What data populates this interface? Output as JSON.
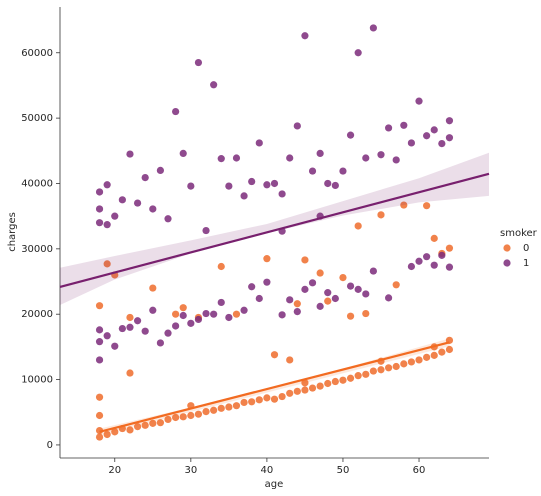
{
  "chart_data": {
    "type": "scatter",
    "x_label": "age",
    "y_label": "charges",
    "legend_title": "smoker",
    "xlim": [
      12.8,
      69.2
    ],
    "ylim": [
      -2000,
      67000
    ],
    "xticks": [
      20,
      30,
      40,
      50,
      60
    ],
    "yticks": [
      0,
      10000,
      20000,
      30000,
      40000,
      50000,
      60000
    ],
    "series": [
      {
        "name": "0",
        "color": "#ef6c2c",
        "line_color": "#f26b21",
        "x": [
          18,
          18,
          19,
          20,
          21,
          22,
          23,
          24,
          25,
          26,
          27,
          28,
          29,
          30,
          31,
          32,
          33,
          34,
          35,
          36,
          37,
          38,
          39,
          40,
          41,
          42,
          43,
          44,
          45,
          46,
          47,
          48,
          49,
          50,
          51,
          52,
          53,
          54,
          55,
          56,
          57,
          58,
          59,
          60,
          61,
          62,
          63,
          64,
          64,
          18,
          30,
          45,
          55,
          62,
          18,
          18,
          19,
          20,
          22,
          22,
          25,
          28,
          29,
          31,
          34,
          36,
          40,
          41,
          43,
          44,
          45,
          47,
          48,
          50,
          51,
          52,
          53,
          55,
          57,
          58,
          61,
          62,
          63,
          64
        ],
        "y": [
          1200,
          2200,
          1600,
          2000,
          2500,
          2300,
          2800,
          3000,
          3300,
          3400,
          3900,
          4200,
          4300,
          4500,
          4700,
          5100,
          5300,
          5600,
          5800,
          6000,
          6500,
          6600,
          6900,
          7200,
          7000,
          7400,
          7900,
          8200,
          8400,
          8700,
          9000,
          9400,
          9700,
          9900,
          10200,
          10600,
          10800,
          11300,
          11500,
          11800,
          12000,
          12400,
          12700,
          13000,
          13400,
          13700,
          14200,
          14600,
          16000,
          4500,
          6000,
          9500,
          12800,
          15000,
          7300,
          21300,
          27700,
          26000,
          11000,
          19500,
          24000,
          20000,
          21000,
          19500,
          27300,
          20000,
          28500,
          13800,
          13000,
          21600,
          28300,
          26300,
          22000,
          25600,
          19700,
          33500,
          20100,
          35200,
          24500,
          36700,
          36600,
          31600,
          29300,
          30100
        ],
        "regression": {
          "x": [
            18,
            64
          ],
          "y": [
            2000,
            15700
          ]
        },
        "ci": {
          "x": [
            18,
            41,
            64
          ],
          "lower": [
            1500,
            8300,
            15100
          ],
          "upper": [
            2500,
            8700,
            16300
          ]
        }
      },
      {
        "name": "1",
        "color": "#7b2a7a",
        "line_color": "#78206e",
        "x": [
          18,
          18,
          18,
          19,
          20,
          21,
          22,
          23,
          24,
          25,
          26,
          27,
          28,
          29,
          30,
          31,
          32,
          33,
          34,
          35,
          37,
          38,
          39,
          40,
          42,
          43,
          44,
          45,
          46,
          47,
          48,
          49,
          51,
          52,
          53,
          54,
          56,
          59,
          60,
          61,
          62,
          63,
          64,
          18,
          18,
          18,
          19,
          19,
          20,
          21,
          22,
          23,
          24,
          25,
          26,
          27,
          28,
          29,
          30,
          31,
          32,
          33,
          34,
          35,
          36,
          37,
          38,
          39,
          40,
          41,
          42,
          43,
          44,
          45,
          46,
          47,
          48,
          49,
          50,
          51,
          52,
          53,
          54,
          55,
          56,
          57,
          58,
          59,
          60,
          61,
          62,
          63,
          64,
          64,
          47,
          42
        ],
        "y": [
          13000,
          15800,
          17600,
          16700,
          15100,
          17800,
          18000,
          19000,
          17400,
          20600,
          15600,
          17100,
          18200,
          19800,
          18600,
          19200,
          20100,
          20000,
          21800,
          19500,
          20600,
          24200,
          22400,
          24900,
          19900,
          22200,
          20400,
          23800,
          24800,
          21200,
          23300,
          22400,
          24300,
          23800,
          23100,
          26600,
          22500,
          27300,
          28100,
          28800,
          27500,
          29000,
          27200,
          34000,
          36100,
          38700,
          33700,
          39800,
          35000,
          37500,
          44500,
          37000,
          40900,
          36100,
          42000,
          34600,
          51000,
          44600,
          39600,
          58500,
          32800,
          55100,
          43800,
          39600,
          43900,
          38100,
          40300,
          46200,
          39800,
          40000,
          38400,
          43900,
          48800,
          62600,
          41900,
          44600,
          40000,
          39700,
          41900,
          47400,
          60000,
          43900,
          63800,
          44400,
          48500,
          43600,
          48900,
          46200,
          52600,
          47300,
          48200,
          46100,
          49600,
          47000,
          35000,
          32700
        ],
        "regression": {
          "x": [
            12.8,
            69.2
          ],
          "y": [
            24180,
            41480
          ]
        },
        "ci": {
          "x": [
            12.8,
            20,
            30,
            40,
            50,
            60,
            69.2
          ],
          "lower": [
            21400,
            25300,
            29300,
            32400,
            35100,
            37100,
            38100
          ],
          "upper": [
            27100,
            28900,
            31300,
            33800,
            37300,
            40800,
            44700
          ]
        }
      }
    ]
  }
}
